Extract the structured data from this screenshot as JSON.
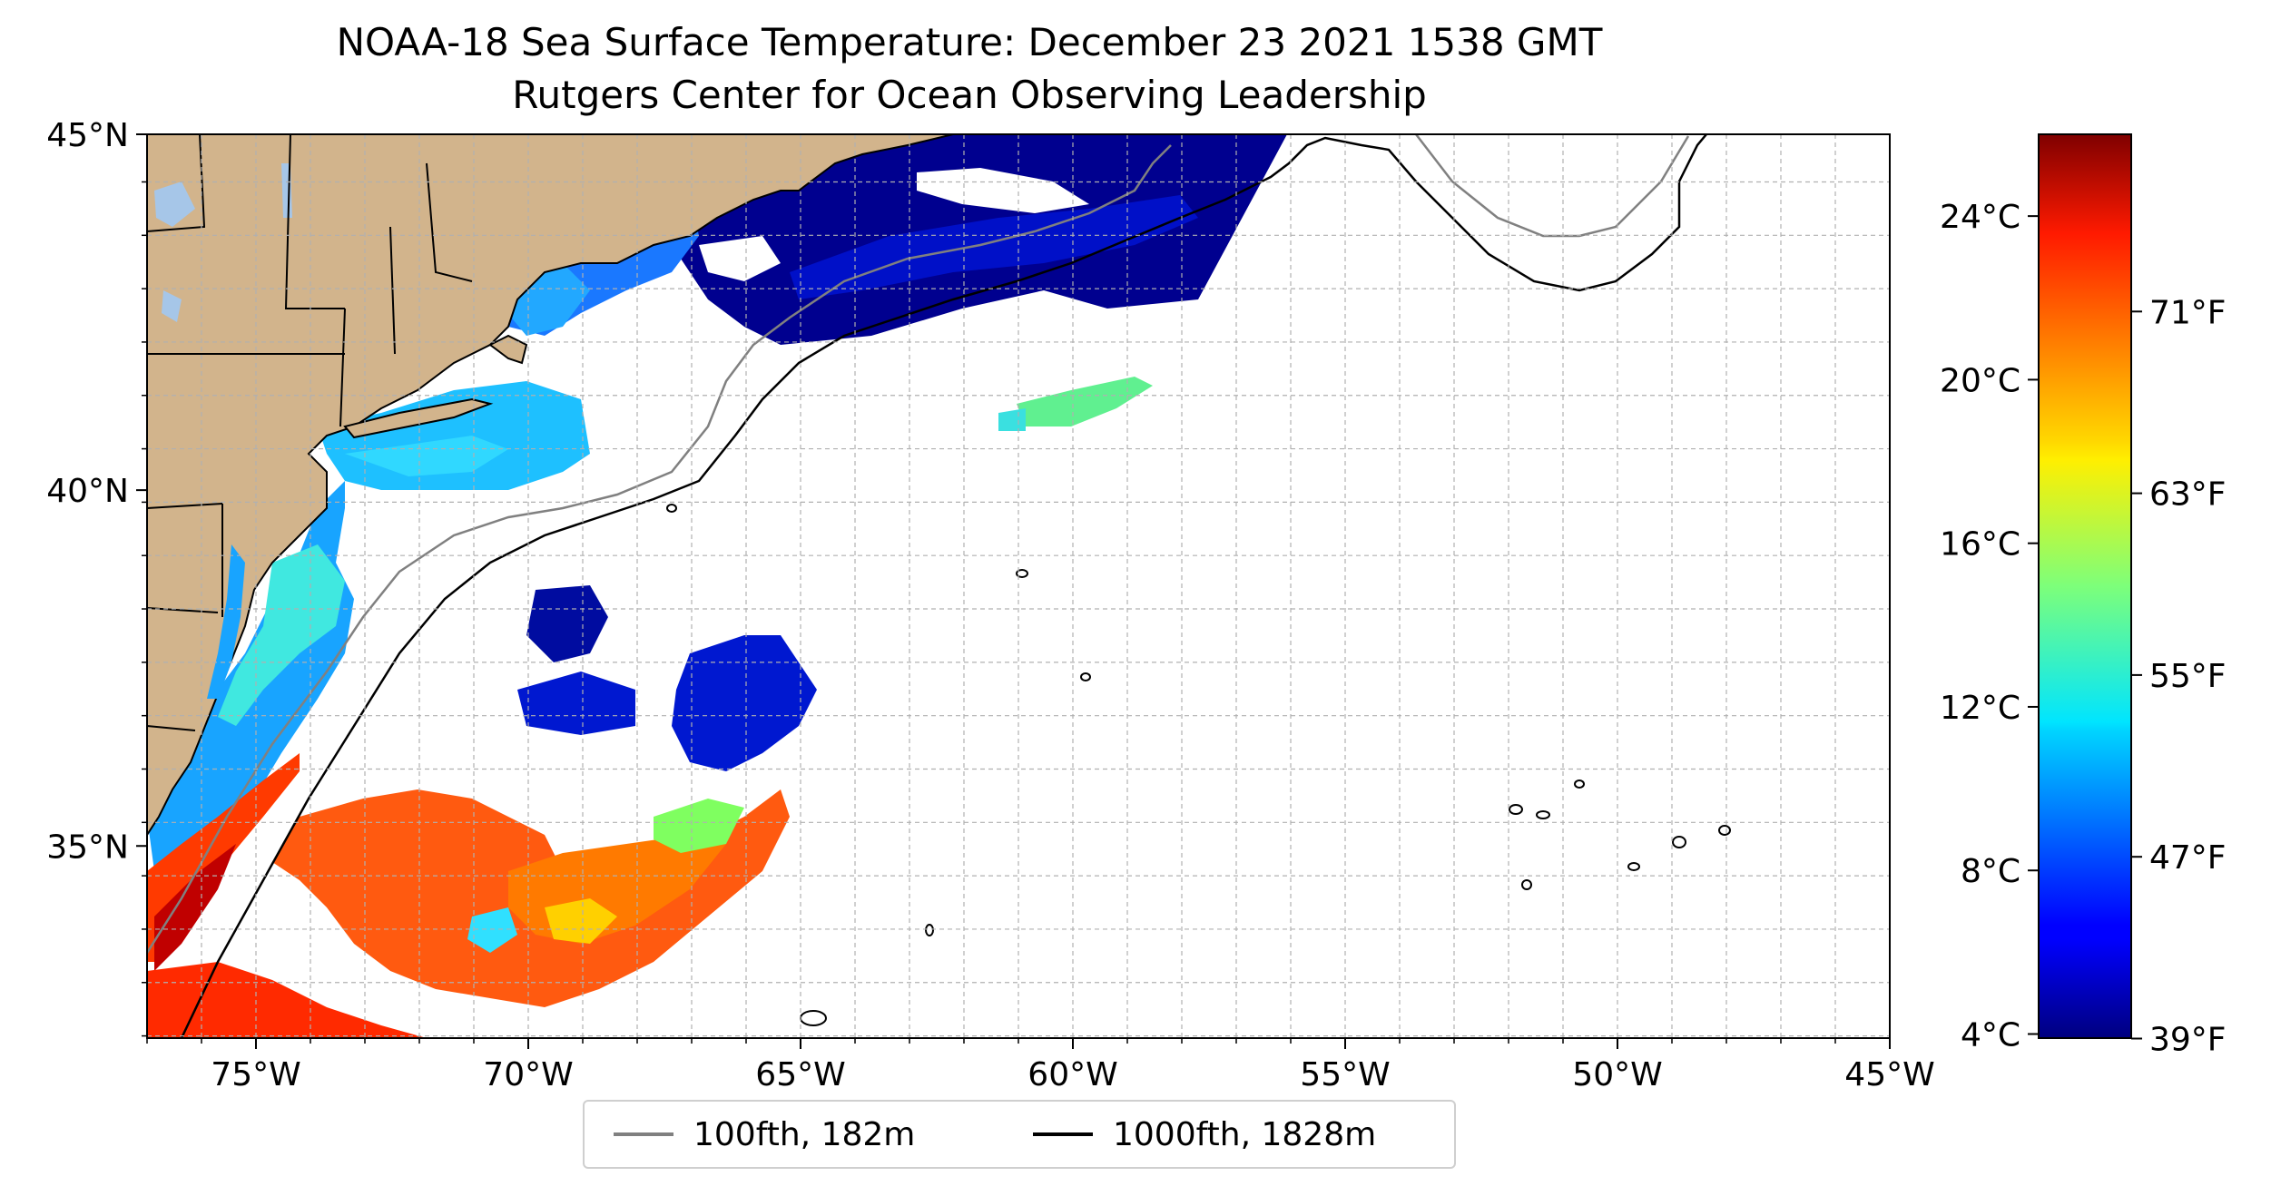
{
  "title": {
    "line1": "NOAA-18 Sea Surface Temperature: December 23 2021 1538 GMT",
    "line2": "Rutgers Center for Ocean Observing Leadership"
  },
  "map": {
    "lon_range": [
      -77,
      -45
    ],
    "lat_range": [
      32.3,
      45
    ],
    "lon_ticks": [
      {
        "value": -75,
        "label": "75°W"
      },
      {
        "value": -70,
        "label": "70°W"
      },
      {
        "value": -65,
        "label": "65°W"
      },
      {
        "value": -60,
        "label": "60°W"
      },
      {
        "value": -55,
        "label": "55°W"
      },
      {
        "value": -50,
        "label": "50°W"
      },
      {
        "value": -45,
        "label": "45°W"
      }
    ],
    "lat_ticks": [
      {
        "value": 45,
        "label": "45°N"
      },
      {
        "value": 40,
        "label": "40°N"
      },
      {
        "value": 35,
        "label": "35°N"
      }
    ],
    "grid": true,
    "colors": {
      "land": "#d2b48c",
      "lakes": "#a6c6e8",
      "isobath_100": "#808080",
      "isobath_1000": "#000000",
      "grid": "#b0b0b0"
    }
  },
  "colorbar": {
    "celsius_ticks": [
      {
        "value": 4,
        "label": "4°C"
      },
      {
        "value": 8,
        "label": "8°C"
      },
      {
        "value": 12,
        "label": "12°C"
      },
      {
        "value": 16,
        "label": "16°C"
      },
      {
        "value": 20,
        "label": "20°C"
      },
      {
        "value": 24,
        "label": "24°C"
      }
    ],
    "fahrenheit_ticks": [
      {
        "value": 39,
        "label": "39°F"
      },
      {
        "value": 47,
        "label": "47°F"
      },
      {
        "value": 55,
        "label": "55°F"
      },
      {
        "value": 63,
        "label": "63°F"
      },
      {
        "value": 71,
        "label": "71°F"
      }
    ],
    "range_celsius": [
      3.9,
      26
    ],
    "colormap": "jet"
  },
  "legend": {
    "items": [
      {
        "label": "100fth, 182m",
        "color": "#808080"
      },
      {
        "label": "1000fth, 1828m",
        "color": "#000000"
      }
    ]
  }
}
